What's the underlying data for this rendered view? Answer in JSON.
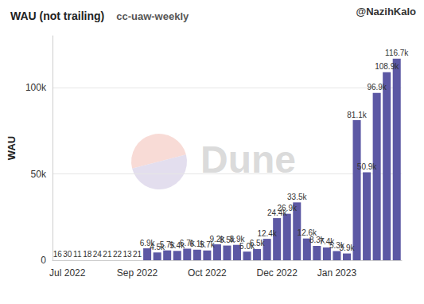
{
  "chart_data": {
    "type": "bar",
    "title": "WAU (not trailing)",
    "subtitle": "cc-uaw-weekly",
    "y_label": "WAU",
    "annotations": [
      "@NazihKalo",
      "Dune"
    ],
    "categories": [
      null,
      "Jul 2022",
      null,
      null,
      null,
      null,
      null,
      null,
      "Sep 2022",
      null,
      null,
      null,
      null,
      null,
      null,
      "Oct 2022",
      null,
      null,
      null,
      null,
      null,
      null,
      "Dec 2022",
      null,
      null,
      null,
      null,
      null,
      "Jan 2023",
      null,
      null,
      null,
      null,
      null,
      null
    ],
    "values": [
      16,
      30,
      11,
      18,
      24,
      21,
      22,
      13,
      21,
      6900,
      4500,
      5700,
      5400,
      6700,
      6100,
      5700,
      9200,
      8500,
      8900,
      5000,
      6500,
      12400,
      24400,
      26900,
      33500,
      12600,
      8300,
      7400,
      5300,
      3900,
      81100,
      50900,
      96900,
      108900,
      116700
    ],
    "value_labels": [
      "16",
      "30",
      "11",
      "18",
      "24",
      "21",
      "22",
      "13",
      "21",
      "6.9k",
      "4.5k",
      "5.7k",
      "5.4k",
      "6.7k",
      "6.1k",
      "5.7k",
      "9.2k",
      "8.5k",
      "8.9k",
      "5.0k",
      "6.5k",
      "12.4k",
      "24.4k",
      "26.9k",
      "33.5k",
      "12.6k",
      "8.3k",
      "7.4k",
      "5.3k",
      "3.9k",
      "81.1k",
      "50.9k",
      "96.9k",
      "108.9k",
      "116.7k"
    ],
    "color": "#5c58a4",
    "ylim": [
      0,
      130000
    ],
    "yticks": [
      0,
      {
        "value": 50000,
        "label": "50k"
      },
      {
        "value": 100000,
        "label": "100k"
      }
    ],
    "grid": true,
    "data_labels": true
  }
}
